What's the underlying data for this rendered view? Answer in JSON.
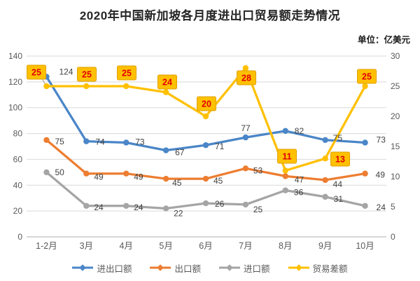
{
  "chart_data": {
    "type": "line",
    "title": "2020年中国新加坡各月度进出口贸易额走势情况",
    "unit_label": "单位：亿美元",
    "categories": [
      "1-2月",
      "3月",
      "4月",
      "5月",
      "6月",
      "7月",
      "8月",
      "9月",
      "10月"
    ],
    "series": [
      {
        "name": "进出口额",
        "color": "#4A86C8",
        "axis": "left",
        "values": [
          124,
          74,
          73,
          67,
          71,
          77,
          82,
          75,
          73
        ]
      },
      {
        "name": "出口额",
        "color": "#ED7D31",
        "axis": "left",
        "values": [
          75,
          49,
          49,
          45,
          45,
          53,
          47,
          44,
          49
        ]
      },
      {
        "name": "进口额",
        "color": "#A5A5A5",
        "axis": "left",
        "values": [
          50,
          24,
          24,
          22,
          26,
          25,
          36,
          31,
          24
        ]
      },
      {
        "name": "贸易差额",
        "color": "#FFC000",
        "axis": "right",
        "label_style": "callout",
        "values": [
          25,
          25,
          25,
          24,
          20,
          28,
          11,
          13,
          25
        ]
      }
    ],
    "left_axis": {
      "min": 0,
      "max": 140,
      "step": 20,
      "ticks": [
        "0",
        "20",
        "40",
        "60",
        "80",
        "100",
        "120",
        "140"
      ]
    },
    "right_axis": {
      "min": 0,
      "max": 30,
      "step": 5,
      "ticks": [
        "0",
        "5",
        "10",
        "15",
        "20",
        "25",
        "30"
      ]
    },
    "grid": true,
    "legend_position": "bottom",
    "colors": {
      "callout_bg": "#FFC000",
      "callout_border": "#DFA100",
      "callout_text": "#E00000",
      "grid": "#D9D9D9",
      "axis_line": "#BFBFBF",
      "axis_text": "#595959",
      "label_text": "#404040",
      "leader_line": "#9a9a9a"
    }
  }
}
